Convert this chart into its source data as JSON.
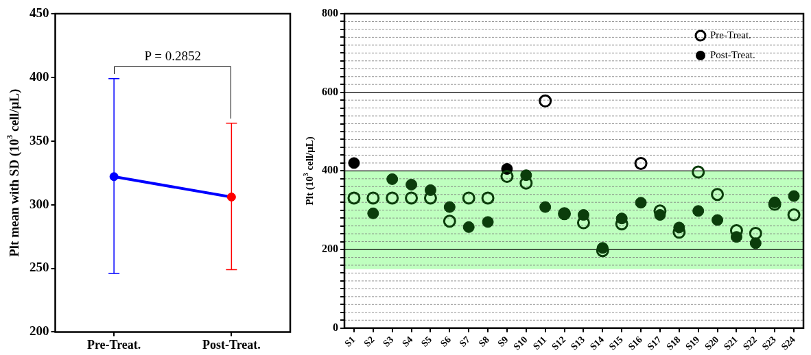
{
  "chart_data": [
    {
      "type": "line",
      "ylabel": "Plt mean with SD (10$^{3}$ cell/μL)",
      "categories": [
        "Pre-Treat.",
        "Post-Treat."
      ],
      "ylim": [
        200,
        450
      ],
      "yticks": [
        200,
        250,
        300,
        350,
        400,
        450
      ],
      "grid": false,
      "legend": false,
      "marker": "circle",
      "line_style": "solid",
      "tick_labels": "xy",
      "series": [
        {
          "color": "#0000ff",
          "colors": [
            "#0000ff",
            "#ff0000"
          ],
          "values": [
            322,
            306
          ],
          "errors": [
            [
              246,
              399
            ],
            [
              249,
              364
            ]
          ]
        }
      ],
      "annotations": [
        "P = 0.2852"
      ]
    },
    {
      "type": "scatter",
      "ylabel": "Plt (10$^{3}$ cell/μL)",
      "categories": [
        "S1",
        "S2",
        "S3",
        "S4",
        "S5",
        "S6",
        "S7",
        "S8",
        "S9",
        "S10",
        "S11",
        "S12",
        "S13",
        "S14",
        "S15",
        "S16",
        "S17",
        "S18",
        "S19",
        "S20",
        "S21",
        "S22",
        "S23",
        "S24"
      ],
      "ylim": [
        0,
        800
      ],
      "yticks": [
        0,
        {
          "value": 20,
          "label": null
        },
        {
          "value": 40,
          "label": null
        },
        {
          "value": 60,
          "label": null
        },
        {
          "value": 80,
          "label": null
        },
        {
          "value": 100,
          "label": null
        },
        {
          "value": 120,
          "label": null
        },
        {
          "value": 140,
          "label": null
        },
        {
          "value": 160,
          "label": null
        },
        {
          "value": 180,
          "label": null
        },
        200,
        {
          "value": 220,
          "label": null
        },
        {
          "value": 240,
          "label": null
        },
        {
          "value": 260,
          "label": null
        },
        {
          "value": 280,
          "label": null
        },
        {
          "value": 300,
          "label": null
        },
        {
          "value": 320,
          "label": null
        },
        {
          "value": 340,
          "label": null
        },
        {
          "value": 360,
          "label": null
        },
        {
          "value": 380,
          "label": null
        },
        400,
        {
          "value": 420,
          "label": null
        },
        {
          "value": 440,
          "label": null
        },
        {
          "value": 460,
          "label": null
        },
        {
          "value": 480,
          "label": null
        },
        {
          "value": 500,
          "label": null
        },
        {
          "value": 520,
          "label": null
        },
        {
          "value": 540,
          "label": null
        },
        {
          "value": 560,
          "label": null
        },
        {
          "value": 580,
          "label": null
        },
        600,
        {
          "value": 620,
          "label": null
        },
        {
          "value": 640,
          "label": null
        },
        {
          "value": 660,
          "label": null
        },
        {
          "value": 680,
          "label": null
        },
        {
          "value": 700,
          "label": null
        },
        {
          "value": 720,
          "label": null
        },
        {
          "value": 740,
          "label": null
        },
        {
          "value": 760,
          "label": null
        },
        {
          "value": 780,
          "label": null
        },
        800
      ],
      "grid": "y",
      "legend": "top right",
      "marker": "circle",
      "bands": [
        {
          "axis": "y",
          "from": 150,
          "to": 400,
          "color": "#bfffbf"
        }
      ],
      "series": [
        {
          "name": "Pre-Treat.",
          "color": "#0b3d0b",
          "colors": [
            "#0b3d0b",
            "#0b3d0b",
            "#0b3d0b",
            "#0b3d0b",
            "#0b3d0b",
            "#0b3d0b",
            "#0b3d0b",
            "#0b3d0b",
            "#0b3d0b",
            "#0b3d0b",
            "#000000",
            "#0b3d0b",
            "#0b3d0b",
            "#0b3d0b",
            "#0b3d0b",
            "#000000",
            "#0b3d0b",
            "#0b3d0b",
            "#0b3d0b",
            "#0b3d0b",
            "#0b3d0b",
            "#0b3d0b",
            "#0b3d0b",
            "#0b3d0b"
          ],
          "values": [
            331,
            331,
            331,
            331,
            331,
            272,
            331,
            331,
            386,
            369,
            578,
            291,
            268,
            197,
            265,
            419,
            298,
            244,
            397,
            340,
            248,
            241,
            315,
            288
          ]
        },
        {
          "name": "Post-Treat.",
          "color": "#0b3d0b",
          "colors": [
            "#000000",
            "#0b3d0b",
            "#0b3d0b",
            "#0b3d0b",
            "#0b3d0b",
            "#0b3d0b",
            "#0b3d0b",
            "#0b3d0b",
            "#000000",
            "#0b3d0b",
            "#0b3d0b",
            "#0b3d0b",
            "#0b3d0b",
            "#0b3d0b",
            "#0b3d0b",
            "#0b3d0b",
            "#0b3d0b",
            "#0b3d0b",
            "#0b3d0b",
            "#0b3d0b",
            "#0b3d0b",
            "#0b3d0b",
            "#0b3d0b",
            "#0b3d0b"
          ],
          "values": [
            420,
            292,
            379,
            365,
            351,
            308,
            257,
            270,
            405,
            389,
            308,
            291,
            288,
            204,
            279,
            319,
            288,
            256,
            298,
            275,
            232,
            216,
            320,
            336
          ]
        }
      ]
    }
  ]
}
